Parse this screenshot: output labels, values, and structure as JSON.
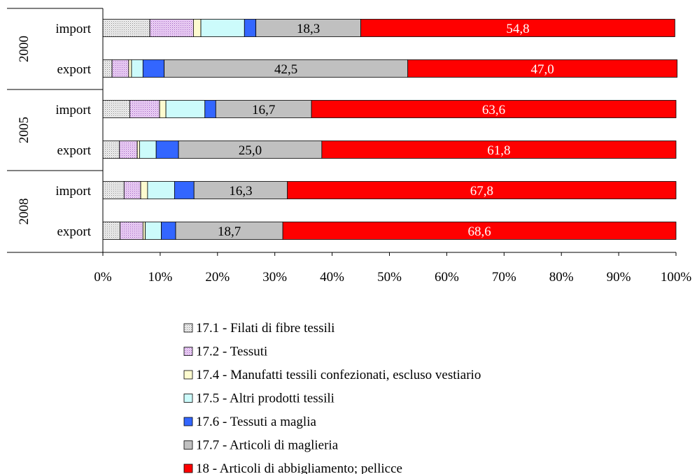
{
  "chart_data": {
    "type": "bar",
    "orientation": "horizontal",
    "stacked": "percent",
    "groups": [
      {
        "label": "2000",
        "rows": [
          {
            "label": "import",
            "values": [
              8.2,
              7.6,
              1.3,
              7.6,
              2.0,
              18.3,
              54.8
            ]
          },
          {
            "label": "export",
            "values": [
              1.6,
              2.9,
              0.5,
              2.0,
              3.7,
              42.5,
              47.0
            ]
          }
        ]
      },
      {
        "label": "2005",
        "rows": [
          {
            "label": "import",
            "values": [
              4.7,
              5.2,
              1.1,
              6.8,
              1.9,
              16.7,
              63.6
            ]
          },
          {
            "label": "export",
            "values": [
              2.9,
              3.1,
              0.4,
              2.9,
              3.9,
              25.0,
              61.8
            ]
          }
        ]
      },
      {
        "label": "2008",
        "rows": [
          {
            "label": "import",
            "values": [
              3.7,
              2.9,
              1.2,
              4.7,
              3.4,
              16.3,
              67.8
            ]
          },
          {
            "label": "export",
            "values": [
              3.0,
              4.0,
              0.4,
              2.8,
              2.5,
              18.7,
              68.6
            ]
          }
        ]
      }
    ],
    "series": [
      {
        "name": "17.1 - Filati di fibre tessili",
        "color": "#f0f0f0",
        "pattern": "dots"
      },
      {
        "name": "17.2 - Tessuti",
        "color": "#ecd2f6",
        "pattern": "dots"
      },
      {
        "name": "17.4 - Manufatti tessili confezionati, escluso vestiario",
        "color": "#fdfbcf"
      },
      {
        "name": "17.5 - Altri prodotti tessili",
        "color": "#ccfbfb"
      },
      {
        "name": "17.6 - Tessuti a maglia",
        "color": "#3366ff"
      },
      {
        "name": "17.7 - Articoli di maglieria",
        "color": "#c0c0c0"
      },
      {
        "name": "18 - Articoli di abbigliamento; pellicce",
        "color": "#ff0000"
      }
    ],
    "data_labels": [
      {
        "row": "2000-import",
        "series": 5,
        "text": "18,3"
      },
      {
        "row": "2000-import",
        "series": 6,
        "text": "54,8"
      },
      {
        "row": "2000-export",
        "series": 5,
        "text": "42,5"
      },
      {
        "row": "2000-export",
        "series": 6,
        "text": "47,0"
      },
      {
        "row": "2005-import",
        "series": 5,
        "text": "16,7"
      },
      {
        "row": "2005-import",
        "series": 6,
        "text": "63,6"
      },
      {
        "row": "2005-export",
        "series": 5,
        "text": "25,0"
      },
      {
        "row": "2005-export",
        "series": 6,
        "text": "61,8"
      },
      {
        "row": "2008-import",
        "series": 5,
        "text": "16,3"
      },
      {
        "row": "2008-import",
        "series": 6,
        "text": "67,8"
      },
      {
        "row": "2008-export",
        "series": 5,
        "text": "18,7"
      },
      {
        "row": "2008-export",
        "series": 6,
        "text": "68,6"
      }
    ],
    "x_ticks": [
      "0%",
      "10%",
      "20%",
      "30%",
      "40%",
      "50%",
      "60%",
      "70%",
      "80%",
      "90%",
      "100%"
    ],
    "xlim": [
      0,
      100
    ],
    "grid": false,
    "legend_position": "bottom-center",
    "colors": {
      "label_on_red": "#ffffff",
      "label_default": "#000000"
    }
  }
}
